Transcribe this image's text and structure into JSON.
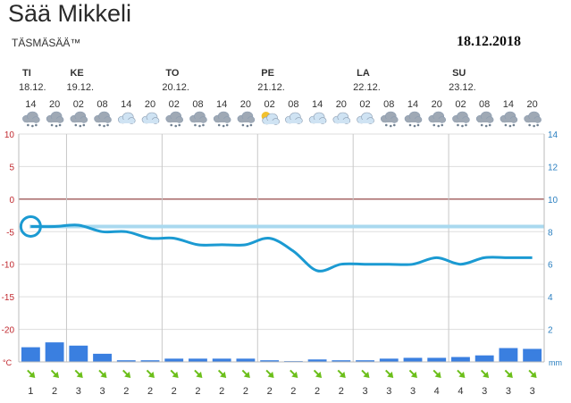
{
  "header": {
    "title": "Sää Mikkeli",
    "subtitle": "TÄSMÄSÄÄ™",
    "date_stamp": "18.12.2018"
  },
  "colors": {
    "temperature_line": "#1b9ad2",
    "reference_line": "#a9d9ef",
    "precip_bar": "#3a7fe0",
    "zero_line": "#7a1a1a",
    "grid": "#dddddd",
    "day_divider": "#c8c8c8",
    "left_axis_text": "#c0282e",
    "right_axis_text": "#2a7fc0",
    "wind_arrow": "#6cbf1b"
  },
  "chart_data": {
    "type": "line+bar",
    "days": [
      {
        "name": "TI",
        "date": "18.12.",
        "slot_start": 0
      },
      {
        "name": "KE",
        "date": "19.12.",
        "slot_start": 2
      },
      {
        "name": "TO",
        "date": "20.12.",
        "slot_start": 6
      },
      {
        "name": "PE",
        "date": "21.12.",
        "slot_start": 10
      },
      {
        "name": "LA",
        "date": "22.12.",
        "slot_start": 14
      },
      {
        "name": "SU",
        "date": "23.12.",
        "slot_start": 18
      }
    ],
    "hours": [
      "14",
      "20",
      "02",
      "08",
      "14",
      "20",
      "02",
      "08",
      "14",
      "20",
      "02",
      "08",
      "14",
      "20",
      "02",
      "08",
      "14",
      "20",
      "02",
      "08",
      "14",
      "20"
    ],
    "weather_icons": [
      "snow-cloud",
      "snow-cloud",
      "snow-cloud",
      "snow-cloud",
      "cloud",
      "cloud",
      "snow-cloud",
      "snow-cloud",
      "snow-cloud",
      "snow-cloud",
      "partly-cloudy",
      "cloud",
      "cloud",
      "cloud",
      "cloud",
      "snow-cloud",
      "snow-cloud",
      "snow-cloud",
      "snow-cloud",
      "snow-cloud",
      "snow-cloud",
      "snow-cloud"
    ],
    "temperature": {
      "unit": "°C",
      "ylim": [
        -25,
        10
      ],
      "ticks": [
        10,
        5,
        0,
        -5,
        -10,
        -15,
        -20
      ],
      "current_marker": {
        "slot": 0,
        "value": -4.2
      },
      "reference_value": -4.2,
      "series": [
        -4.2,
        -4.2,
        -4.0,
        -5.0,
        -5.0,
        -6.0,
        -6.0,
        -7.0,
        -7.0,
        -7.0,
        -6.0,
        -8.0,
        -11.0,
        -10.0,
        -10.0,
        -10.0,
        -10.0,
        -9.0,
        -10.0,
        -9.0,
        -9.0,
        -9.0
      ]
    },
    "precipitation": {
      "unit": "mm",
      "ylim": [
        0,
        14
      ],
      "ticks": [
        14,
        12,
        10,
        8,
        6,
        4,
        2
      ],
      "values": [
        0.9,
        1.2,
        1.0,
        0.5,
        0.1,
        0.1,
        0.2,
        0.2,
        0.2,
        0.2,
        0.1,
        0.05,
        0.15,
        0.1,
        0.1,
        0.2,
        0.25,
        0.25,
        0.3,
        0.4,
        0.85,
        0.8
      ]
    },
    "wind": {
      "directions_deg": [
        315,
        315,
        315,
        315,
        315,
        315,
        315,
        315,
        315,
        315,
        315,
        315,
        315,
        315,
        315,
        315,
        315,
        315,
        315,
        315,
        315,
        315
      ],
      "speeds": [
        "1",
        "2",
        "3",
        "3",
        "2",
        "2",
        "2",
        "2",
        "2",
        "2",
        "2",
        "2",
        "2",
        "2",
        "3",
        "3",
        "3",
        "4",
        "4",
        "3",
        "3",
        "3"
      ]
    }
  }
}
